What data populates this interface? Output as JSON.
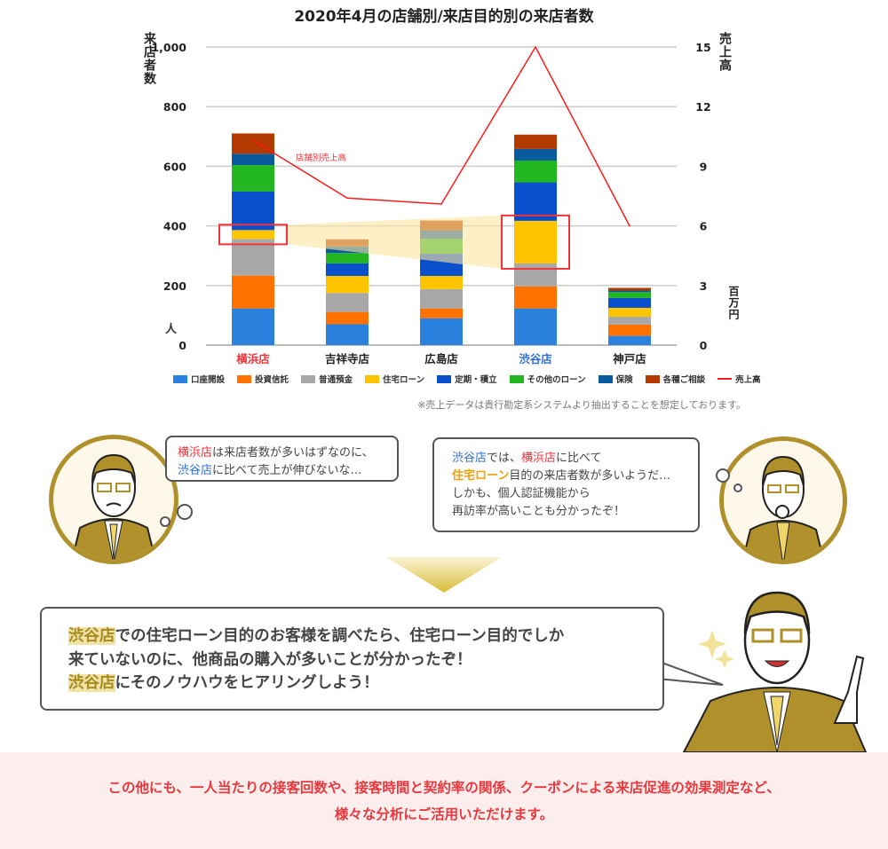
{
  "chart_data": {
    "type": "bar",
    "stacked": true,
    "title": "2020年4月の店舗別/来店目的別の来店者数",
    "ylabel": "来店者数",
    "yunit": "人",
    "y2label": "売上高",
    "y2unit": "百万円",
    "ylim": [
      0,
      1000
    ],
    "y2lim": [
      0,
      15
    ],
    "yticks": [
      "0",
      "200",
      "400",
      "600",
      "800",
      "1,000"
    ],
    "y2ticks": [
      "0",
      "3",
      "6",
      "9",
      "12",
      "15"
    ],
    "grid": true,
    "legend": "bottom",
    "categories": [
      "横浜店",
      "吉祥寺店",
      "広島店",
      "渋谷店",
      "神戸店"
    ],
    "category_colors": [
      "#f2333a",
      "#222222",
      "#222222",
      "#2d6fd6",
      "#222222"
    ],
    "series": [
      {
        "name": "口座開設",
        "color": "#2a82de",
        "values": [
          123,
          70,
          90,
          123,
          31
        ]
      },
      {
        "name": "投資信託",
        "color": "#ff7200",
        "values": [
          110,
          41,
          33,
          74,
          38
        ]
      },
      {
        "name": "普通預金",
        "color": "#a8a8a8",
        "values": [
          123,
          64,
          65,
          77,
          26
        ]
      },
      {
        "name": "住宅ローン",
        "color": "#ffc400",
        "values": [
          30,
          57,
          44,
          143,
          30
        ]
      },
      {
        "name": "定期・積立",
        "color": "#0a4fcc",
        "values": [
          129,
          42,
          75,
          129,
          33
        ]
      },
      {
        "name": "その他のローン",
        "color": "#22b722",
        "values": [
          89,
          35,
          49,
          73,
          20
        ]
      },
      {
        "name": "保険",
        "color": "#0a5a9e",
        "values": [
          38,
          22,
          29,
          39,
          5
        ]
      },
      {
        "name": "各種ご相談",
        "color": "#b23a00",
        "values": [
          68,
          24,
          33,
          48,
          9
        ]
      }
    ],
    "line": {
      "name": "売上高",
      "color": "#ff1a1a",
      "values": [
        10.3,
        7.4,
        7.1,
        15,
        6.0
      ],
      "annotation": "店舗別売上高"
    },
    "note": "※売上データは貴行勘定系システムより抽出することを想定しております。"
  },
  "bubble_left": {
    "p1": "横浜店",
    "p2": "は来店者数が多いはずなのに、",
    "p3": "渋谷店",
    "p4": "に比べて売上が伸びないな…"
  },
  "bubble_right": {
    "p1": "渋谷店",
    "p2": "では、",
    "p3": "横浜店",
    "p4": "に比べて",
    "p5": "住宅ローン",
    "p6": "目的の来店者数が多いようだ…",
    "p7": "しかも、個人認証機能から",
    "p8": "再訪率が高いことも分かったぞ！"
  },
  "bubble_main": {
    "p1": "渋谷店",
    "p2": "での住宅ローン目的のお客様を調べたら、住宅ローン目的でしか",
    "p3": "来ていないのに、他商品の購入が多いことが分かったぞ！",
    "p4": "渋谷店",
    "p5": "にそのノウハウをヒアリングしよう！"
  },
  "footer": {
    "line1": "この他にも、一人当たりの接客回数や、接客時間と契約率の関係、クーポンによる来店促進の効果測定など、",
    "line2": "様々な分析にご活用いただけます。"
  }
}
